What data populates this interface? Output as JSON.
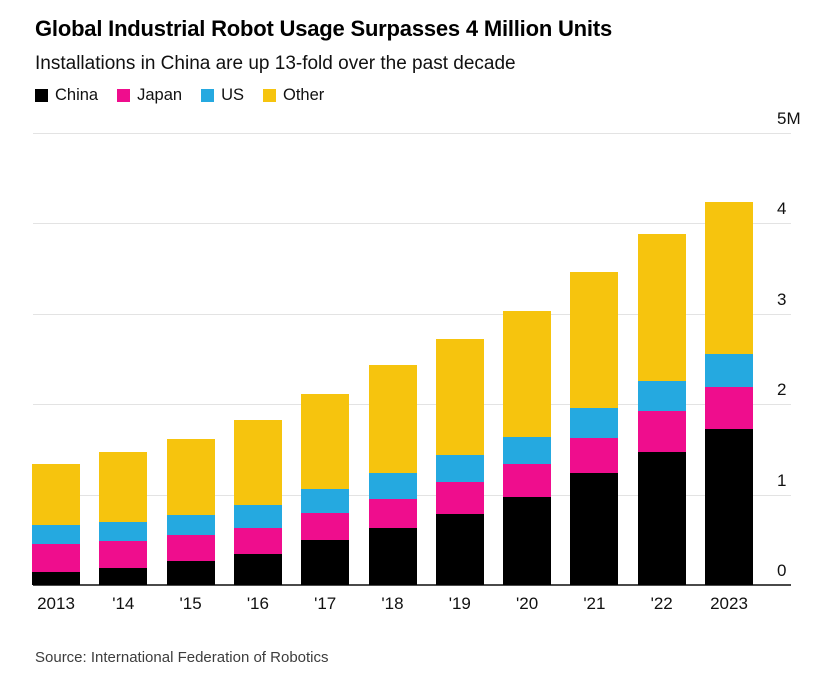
{
  "header": {
    "title": "Global Industrial Robot Usage Surpasses 4 Million Units",
    "subtitle": "Installations in China are up 13-fold over the past decade"
  },
  "legend": [
    {
      "label": "China",
      "color": "#000000"
    },
    {
      "label": "Japan",
      "color": "#EF0D8D"
    },
    {
      "label": "US",
      "color": "#25A9E0"
    },
    {
      "label": "Other",
      "color": "#F6C40E"
    }
  ],
  "source": "Source: International Federation of Robotics",
  "colors": {
    "china": "#000000",
    "japan": "#EF0D8D",
    "us": "#25A9E0",
    "other": "#F6C40E",
    "gridline": "#e3e3e3",
    "axis": "#4a4a4a",
    "text": "#111111"
  },
  "chart_data": {
    "type": "bar",
    "stacked": true,
    "title": "Global Industrial Robot Usage Surpasses 4 Million Units",
    "subtitle": "Installations in China are up 13-fold over the past decade",
    "unit": "millions of units",
    "categories": [
      "2013",
      "'14",
      "'15",
      "'16",
      "'17",
      "'18",
      "'19",
      "'20",
      "'21",
      "'22",
      "2023"
    ],
    "series": [
      {
        "name": "China",
        "color": "#000000",
        "values": [
          0.14,
          0.19,
          0.26,
          0.34,
          0.5,
          0.63,
          0.78,
          0.97,
          1.24,
          1.47,
          1.73
        ]
      },
      {
        "name": "Japan",
        "color": "#EF0D8D",
        "values": [
          0.31,
          0.3,
          0.29,
          0.29,
          0.3,
          0.32,
          0.36,
          0.37,
          0.39,
          0.45,
          0.46
        ]
      },
      {
        "name": "US",
        "color": "#25A9E0",
        "values": [
          0.21,
          0.21,
          0.23,
          0.25,
          0.26,
          0.29,
          0.3,
          0.3,
          0.33,
          0.34,
          0.37
        ]
      },
      {
        "name": "Other",
        "color": "#F6C40E",
        "values": [
          0.68,
          0.77,
          0.84,
          0.95,
          1.05,
          1.19,
          1.28,
          1.39,
          1.5,
          1.62,
          1.68
        ]
      }
    ],
    "totals": [
      1.34,
      1.47,
      1.62,
      1.83,
      2.11,
      2.43,
      2.72,
      3.03,
      3.46,
      3.88,
      4.24
    ],
    "y_axis": {
      "ticks": [
        "0",
        "1",
        "2",
        "3",
        "4",
        "5M"
      ],
      "tick_values": [
        0,
        1,
        2,
        3,
        4,
        5
      ],
      "min": 0,
      "max": 5
    },
    "grid": true,
    "legend_position": "top-left",
    "legend_entries": [
      "China",
      "Japan",
      "US",
      "Other"
    ]
  }
}
